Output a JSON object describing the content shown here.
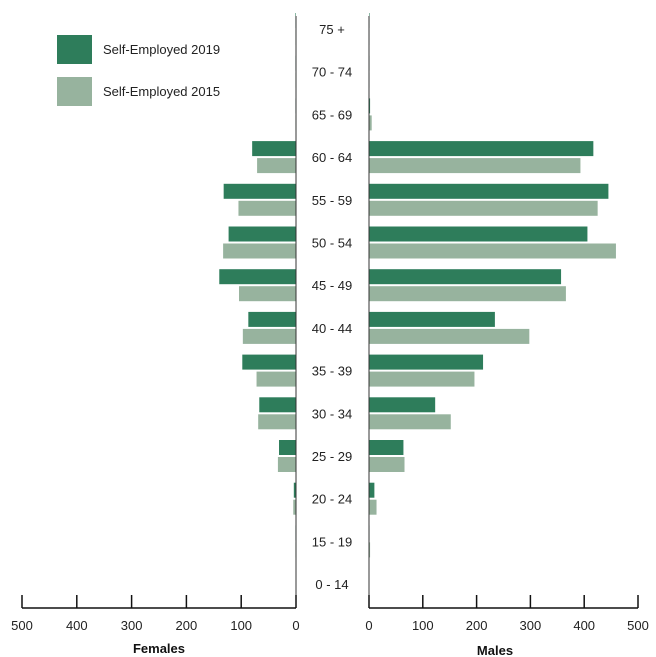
{
  "chart_data": {
    "type": "bar",
    "subtype": "population-pyramid",
    "categories": [
      "0 - 14",
      "15 - 19",
      "20 - 24",
      "25 - 29",
      "30 - 34",
      "35 - 39",
      "40 - 44",
      "45 - 49",
      "50 - 54",
      "55 - 59",
      "60 - 64",
      "65 - 69",
      "70 - 74",
      "75 +"
    ],
    "series": [
      {
        "name": "Self-Employed 2019",
        "color": "#2e7d5b",
        "females": [
          0,
          1,
          4,
          31,
          67,
          98,
          87,
          140,
          123,
          132,
          80,
          1,
          1,
          1
        ],
        "males": [
          0,
          1,
          10,
          64,
          123,
          212,
          234,
          357,
          406,
          445,
          417,
          2,
          1,
          1
        ]
      },
      {
        "name": "Self-Employed 2015",
        "color": "#97b39e",
        "females": [
          0,
          1,
          5,
          33,
          69,
          72,
          97,
          104,
          133,
          105,
          71,
          1,
          1,
          1
        ],
        "males": [
          0,
          2,
          14,
          66,
          152,
          196,
          298,
          366,
          459,
          425,
          393,
          5,
          1,
          1
        ]
      }
    ],
    "females_axis": {
      "label": "Females",
      "ticks": [
        "500",
        "400",
        "300",
        "200",
        "100",
        "0"
      ],
      "range": [
        500,
        0
      ]
    },
    "males_axis": {
      "label": "Males",
      "ticks": [
        "0",
        "100",
        "200",
        "300",
        "400",
        "500"
      ],
      "range": [
        0,
        500
      ]
    },
    "legend": {
      "position": "top-left",
      "entries": [
        "Self-Employed 2019",
        "Self-Employed 2015"
      ]
    },
    "grid": false
  }
}
